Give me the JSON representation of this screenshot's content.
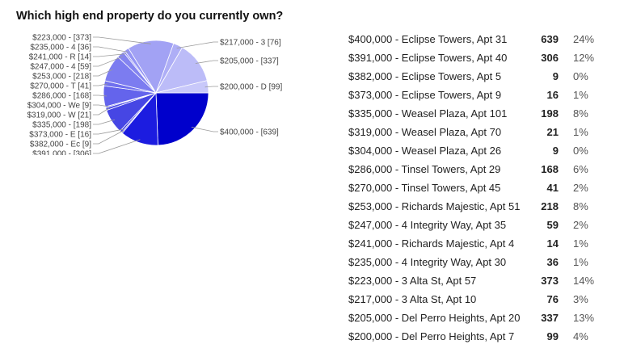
{
  "question": "Which high end property do you currently own?",
  "colors": {
    "pie_slices": [
      "#0000cc",
      "#1c1ce0",
      "#3434e2",
      "#3c3cdc",
      "#4646e4",
      "#4e4ee6",
      "#5656e8",
      "#6464ec",
      "#7070ee",
      "#7c7cf0",
      "#8484f0",
      "#8c8cf2",
      "#9494f4",
      "#a2a2f4",
      "#aeaef6",
      "#bcbcf8",
      "#c8c8fa"
    ],
    "leader_line": "#9a9a9a",
    "slice_border": "#ffffff"
  },
  "chart_data": {
    "type": "pie",
    "title": "",
    "slices": [
      {
        "label": "$400,000 - [639]",
        "value": 639
      },
      {
        "label": "$391,000 - [306]",
        "value": 306
      },
      {
        "label": "$382,000 - Ec [9]",
        "value": 9
      },
      {
        "label": "$373,000 - E [16]",
        "value": 16
      },
      {
        "label": "$335,000 - [198]",
        "value": 198
      },
      {
        "label": "$319,000 - W [21]",
        "value": 21
      },
      {
        "label": "$304,000 - We [9]",
        "value": 9
      },
      {
        "label": "$286,000 - [168]",
        "value": 168
      },
      {
        "label": "$270,000 - T [41]",
        "value": 41
      },
      {
        "label": "$253,000 - [218]",
        "value": 218
      },
      {
        "label": "$247,000 - 4 [59]",
        "value": 59
      },
      {
        "label": "$241,000 - R [14]",
        "value": 14
      },
      {
        "label": "$235,000 - 4 [36]",
        "value": 36
      },
      {
        "label": "$223,000 - [373]",
        "value": 373
      },
      {
        "label": "$217,000 - 3 [76]",
        "value": 76
      },
      {
        "label": "$205,000 - [337]",
        "value": 337
      },
      {
        "label": "$200,000 - D [99]",
        "value": 99
      }
    ]
  },
  "results": [
    {
      "label": "$400,000 - Eclipse Towers, Apt 31",
      "count": "639",
      "percent": "24%"
    },
    {
      "label": "$391,000 - Eclipse Towers, Apt 40",
      "count": "306",
      "percent": "12%"
    },
    {
      "label": "$382,000 - Eclipse Towers, Apt 5",
      "count": "9",
      "percent": "0%"
    },
    {
      "label": "$373,000 - Eclipse Towers, Apt 9",
      "count": "16",
      "percent": "1%"
    },
    {
      "label": "$335,000 - Weasel Plaza, Apt 101",
      "count": "198",
      "percent": "8%"
    },
    {
      "label": "$319,000 - Weasel Plaza, Apt 70",
      "count": "21",
      "percent": "1%"
    },
    {
      "label": "$304,000 - Weasel Plaza, Apt 26",
      "count": "9",
      "percent": "0%"
    },
    {
      "label": "$286,000 - Tinsel Towers, Apt 29",
      "count": "168",
      "percent": "6%"
    },
    {
      "label": "$270,000 - Tinsel Towers, Apt 45",
      "count": "41",
      "percent": "2%"
    },
    {
      "label": "$253,000 - Richards Majestic, Apt 51",
      "count": "218",
      "percent": "8%"
    },
    {
      "label": "$247,000 - 4 Integrity Way, Apt 35",
      "count": "59",
      "percent": "2%"
    },
    {
      "label": "$241,000 - Richards Majestic, Apt 4",
      "count": "14",
      "percent": "1%"
    },
    {
      "label": "$235,000 - 4 Integrity Way, Apt 30",
      "count": "36",
      "percent": "1%"
    },
    {
      "label": "$223,000 - 3 Alta St, Apt 57",
      "count": "373",
      "percent": "14%"
    },
    {
      "label": "$217,000 - 3 Alta St, Apt 10",
      "count": "76",
      "percent": "3%"
    },
    {
      "label": "$205,000 - Del Perro Heights, Apt 20",
      "count": "337",
      "percent": "13%"
    },
    {
      "label": "$200,000 - Del Perro Heights, Apt 7",
      "count": "99",
      "percent": "4%"
    }
  ]
}
